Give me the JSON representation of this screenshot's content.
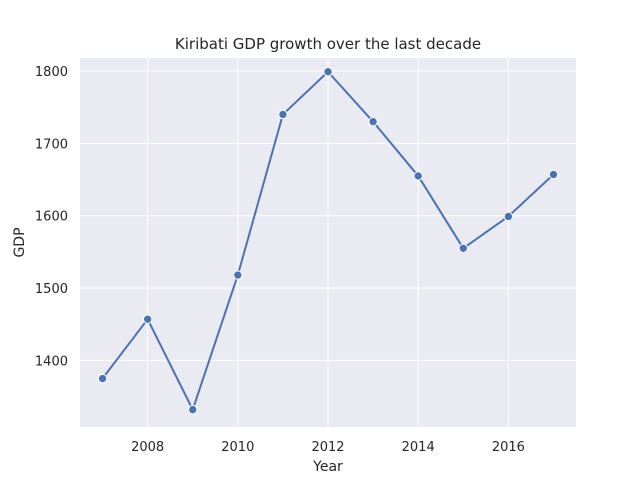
{
  "chart_data": {
    "type": "line",
    "title": "Kiribati GDP growth over the last decade",
    "xlabel": "Year",
    "ylabel": "GDP",
    "x": [
      2007,
      2008,
      2009,
      2010,
      2011,
      2012,
      2013,
      2014,
      2015,
      2016,
      2017
    ],
    "series": [
      {
        "values": [
          1375,
          1457,
          1332,
          1518,
          1740,
          1799,
          1730,
          1655,
          1555,
          1599,
          1657
        ]
      }
    ],
    "xlim": [
      2006.5,
      2017.5
    ],
    "ylim": [
      1308,
      1818
    ],
    "xticks": [
      2008,
      2010,
      2012,
      2014,
      2016
    ],
    "yticks": [
      1400,
      1500,
      1600,
      1700,
      1800
    ],
    "grid": true,
    "marker": "circle",
    "colors": {
      "background": "#eaeaf2",
      "grid": "#ffffff",
      "line": "#4c72b0",
      "marker_edge": "#ffffff",
      "text": "#262626"
    }
  }
}
